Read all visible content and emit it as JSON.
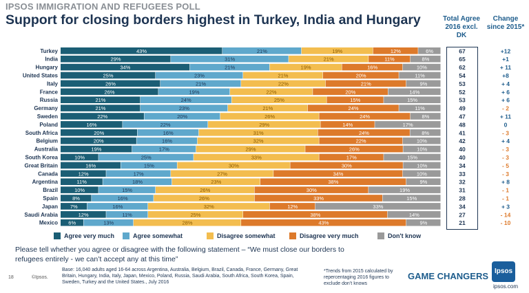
{
  "header": {
    "kicker": "IPSOS IMMIGRATION AND REFUGEES POLL",
    "headline": "Support for closing borders highest in Turkey, India and Hungary"
  },
  "columns": {
    "total_agree": "Total Agree 2016 excl. DK",
    "change": "Change since 2015*"
  },
  "colors": {
    "agree_very_much": "#1b5e75",
    "agree_somewhat": "#5fa8cc",
    "disagree_somewhat": "#f3bd4f",
    "disagree_very_much": "#dd7a2b",
    "dont_know": "#9a9a9a",
    "change_positive": "#1d5c8c",
    "change_negative": "#dd7a2b"
  },
  "chart_data": {
    "type": "bar",
    "orientation": "horizontal-stacked-100",
    "categories": [
      "Turkey",
      "India",
      "Hungary",
      "United States",
      "Italy",
      "France",
      "Russia",
      "Germany",
      "Sweden",
      "Poland",
      "South Africa",
      "Belgium",
      "Australia",
      "South Korea",
      "Great Britain",
      "Canada",
      "Argentina",
      "Brazil",
      "Spain",
      "Japan",
      "Saudi Arabia",
      "Mexico"
    ],
    "series": [
      {
        "name": "Agree very much",
        "values": [
          43,
          29,
          34,
          25,
          26,
          26,
          21,
          21,
          22,
          16,
          20,
          20,
          19,
          10,
          16,
          12,
          11,
          10,
          8,
          7,
          12,
          6
        ]
      },
      {
        "name": "Agree somewhat",
        "values": [
          21,
          31,
          21,
          23,
          21,
          19,
          24,
          23,
          20,
          22,
          16,
          16,
          17,
          25,
          15,
          17,
          18,
          15,
          16,
          16,
          11,
          13
        ]
      },
      {
        "name": "Disagree somewhat",
        "values": [
          19,
          21,
          19,
          21,
          22,
          22,
          25,
          21,
          26,
          29,
          31,
          32,
          29,
          33,
          30,
          27,
          23,
          26,
          26,
          32,
          25,
          28
        ]
      },
      {
        "name": "Disagree very much",
        "values": [
          12,
          11,
          16,
          20,
          21,
          20,
          15,
          24,
          24,
          14,
          24,
          22,
          26,
          17,
          30,
          34,
          38,
          30,
          33,
          12,
          38,
          43
        ]
      },
      {
        "name": "Don't know",
        "values": [
          6,
          8,
          10,
          11,
          9,
          14,
          15,
          11,
          8,
          17,
          8,
          10,
          10,
          15,
          10,
          10,
          9,
          19,
          15,
          33,
          14,
          9
        ]
      }
    ],
    "total_agree_2016": [
      67,
      65,
      62,
      54,
      53,
      52,
      53,
      49,
      47,
      48,
      41,
      42,
      40,
      40,
      34,
      33,
      32,
      31,
      28,
      34,
      27,
      21
    ],
    "change_since_2015": [
      "+12",
      "+1",
      "+ 11",
      "+8",
      "+ 4",
      "+ 6",
      "+ 6",
      "- 2",
      "+ 11",
      "0",
      "- 3",
      "+ 4",
      "- 3",
      "- 3",
      "- 5",
      "- 3",
      "+ 8",
      "- 1",
      "- 1",
      "+ 3",
      "- 14",
      "- 10"
    ],
    "xlim": [
      0,
      100
    ]
  },
  "legend": [
    "Agree very much",
    "Agree somewhat",
    "Disagree somewhat",
    "Disagree very much",
    "Don't know"
  ],
  "question": "Please tell whether you agree or disagree with the following statement – “We must close our borders to refugees entirely - we can’t accept any at this time”",
  "base_note": "Base: 16,040 adults aged 16-64 across  Argentina, Australia, Belgium, Brazil, Canada, France, Germany, Great Britain, Hungary, India, Italy, Japan, Mexico, Poland, Russia, Saudi Arabia, South Africa, South Korea, Spain, Sweden, Turkey and the United States., July 2016",
  "trend_note": "*Trends from 2015 calculated by repercentaging 2016 figures to exclude don’t knows",
  "footer": {
    "page_number": "18",
    "copyright": "©Ipsos.",
    "tagline": "GAME CHANGERS",
    "logo_text": "Ipsos",
    "url": "ipsos.com"
  }
}
